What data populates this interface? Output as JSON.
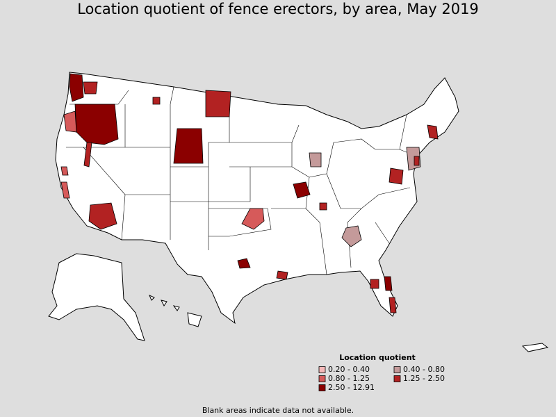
{
  "title": "Location quotient of fence erectors, by area, May 2019",
  "legend": {
    "title": "Location quotient",
    "items": [
      {
        "label": "0.20 - 0.40",
        "color": "#f5b8b8"
      },
      {
        "label": "0.40 - 0.80",
        "color": "#c49a9a"
      },
      {
        "label": "0.80 - 1.25",
        "color": "#d65a5a"
      },
      {
        "label": "1.25 - 2.50",
        "color": "#b22222"
      },
      {
        "label": "2.50 - 12.91",
        "color": "#8b0000"
      }
    ]
  },
  "note": "Blank areas indicate data not available."
}
